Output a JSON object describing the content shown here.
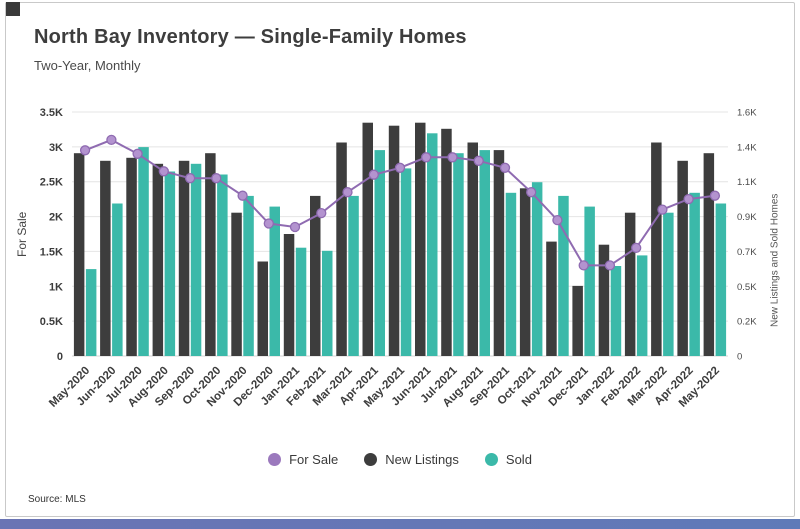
{
  "page": {
    "title": "North Bay Inventory — Single-Family Homes",
    "subtitle": "Two-Year, Monthly",
    "source": "Source: MLS"
  },
  "chart_data": {
    "type": "bar",
    "title": "North Bay Inventory — Single-Family Homes",
    "subtitle": "Two-Year, Monthly",
    "categories": [
      "May-2020",
      "Jun-2020",
      "Jul-2020",
      "Aug-2020",
      "Sep-2020",
      "Oct-2020",
      "Nov-2020",
      "Dec-2020",
      "Jan-2021",
      "Feb-2021",
      "Mar-2021",
      "Apr-2021",
      "May-2021",
      "Jun-2021",
      "Jul-2021",
      "Aug-2021",
      "Sep-2021",
      "Oct-2021",
      "Nov-2021",
      "Dec-2021",
      "Jan-2022",
      "Feb-2022",
      "Mar-2022",
      "Apr-2022",
      "May-2022"
    ],
    "series": [
      {
        "name": "For Sale",
        "type": "line",
        "axis": "left",
        "color": "#8f6bb1",
        "marker_fill": "#b393cf",
        "values": [
          2.95,
          3.1,
          2.9,
          2.65,
          2.55,
          2.55,
          2.3,
          1.9,
          1.85,
          2.05,
          2.35,
          2.6,
          2.7,
          2.85,
          2.85,
          2.8,
          2.7,
          2.35,
          1.95,
          1.3,
          1.3,
          1.55,
          2.1,
          2.25,
          2.3
        ]
      },
      {
        "name": "New Listings",
        "type": "bar",
        "axis": "right",
        "color": "#3d3d3d",
        "values": [
          1.33,
          1.28,
          1.3,
          1.26,
          1.28,
          1.33,
          0.94,
          0.62,
          0.8,
          1.05,
          1.4,
          1.53,
          1.51,
          1.53,
          1.49,
          1.4,
          1.35,
          1.1,
          0.75,
          0.46,
          0.73,
          0.94,
          1.4,
          1.28,
          1.33
        ]
      },
      {
        "name": "Sold",
        "type": "bar",
        "axis": "right",
        "color": "#3bb9a9",
        "values": [
          0.57,
          1.0,
          1.37,
          1.21,
          1.26,
          1.19,
          1.05,
          0.98,
          0.71,
          0.69,
          1.05,
          1.35,
          1.23,
          1.46,
          1.33,
          1.35,
          1.07,
          1.14,
          1.05,
          0.98,
          0.59,
          0.66,
          0.94,
          1.07,
          1.0
        ]
      }
    ],
    "left_axis": {
      "label": "For Sale",
      "max": 3.5,
      "ticks": [
        "0",
        "0.5K",
        "1K",
        "1.5K",
        "2K",
        "2.5K",
        "3K",
        "3.5K"
      ]
    },
    "right_axis": {
      "label": "New Listings and Sold Homes",
      "max": 1.6,
      "ticks": [
        "0",
        "0.2K",
        "0.5K",
        "0.7K",
        "0.9K",
        "1.1K",
        "1.4K",
        "1.6K"
      ]
    },
    "grid": true,
    "legend_position": "bottom"
  },
  "legend": {
    "items": [
      {
        "label": "For Sale",
        "color": "#9b79bd"
      },
      {
        "label": "New Listings",
        "color": "#3d3d3d"
      },
      {
        "label": "Sold",
        "color": "#3bb9a9"
      }
    ]
  },
  "colors": {
    "accent_bar": "#6277b5",
    "corner_mark": "#3a3a3a",
    "grid": "#e4e4e4",
    "title": "#3d3d3d"
  }
}
